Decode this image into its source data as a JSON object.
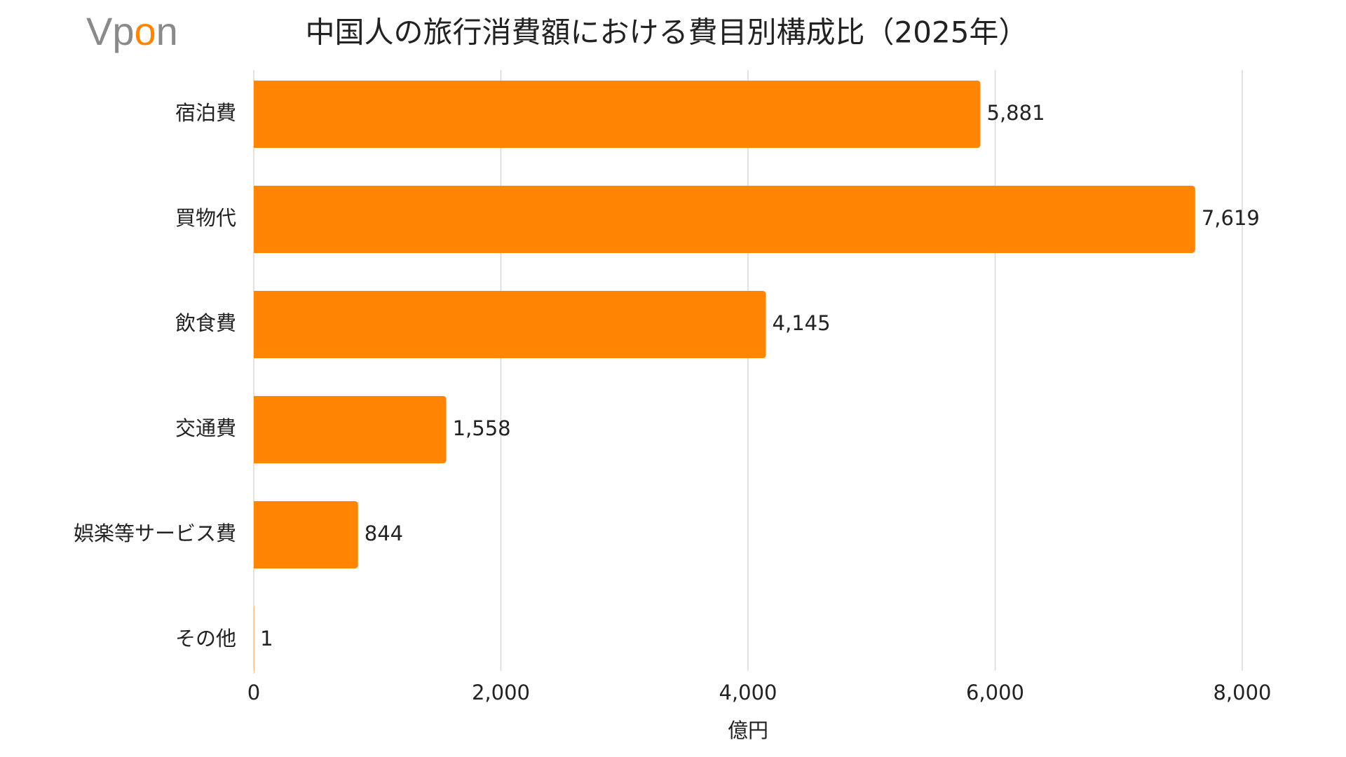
{
  "logo": "Vpon",
  "chart_data": {
    "type": "barh",
    "title": "中国人の旅行消費額における費目別構成比（2025年）",
    "categories": [
      "宿泊費",
      "買物代",
      "飲食費",
      "交通費",
      "娯楽等サービス費",
      "その他"
    ],
    "values": [
      5881,
      7619,
      4145,
      1558,
      844,
      1
    ],
    "value_labels": [
      "5,881",
      "7,619",
      "4,145",
      "1,558",
      "844",
      "1"
    ],
    "color": "#ff8503",
    "xlabel": "億円",
    "xlim": [
      0,
      8000
    ],
    "xticks": [
      0,
      {
        "value": 2000,
        "label": "2,000"
      },
      {
        "value": 4000,
        "label": "4,000"
      },
      {
        "value": 6000,
        "label": "6,000"
      },
      {
        "value": 8000,
        "label": "8,000"
      }
    ],
    "grid": true
  }
}
